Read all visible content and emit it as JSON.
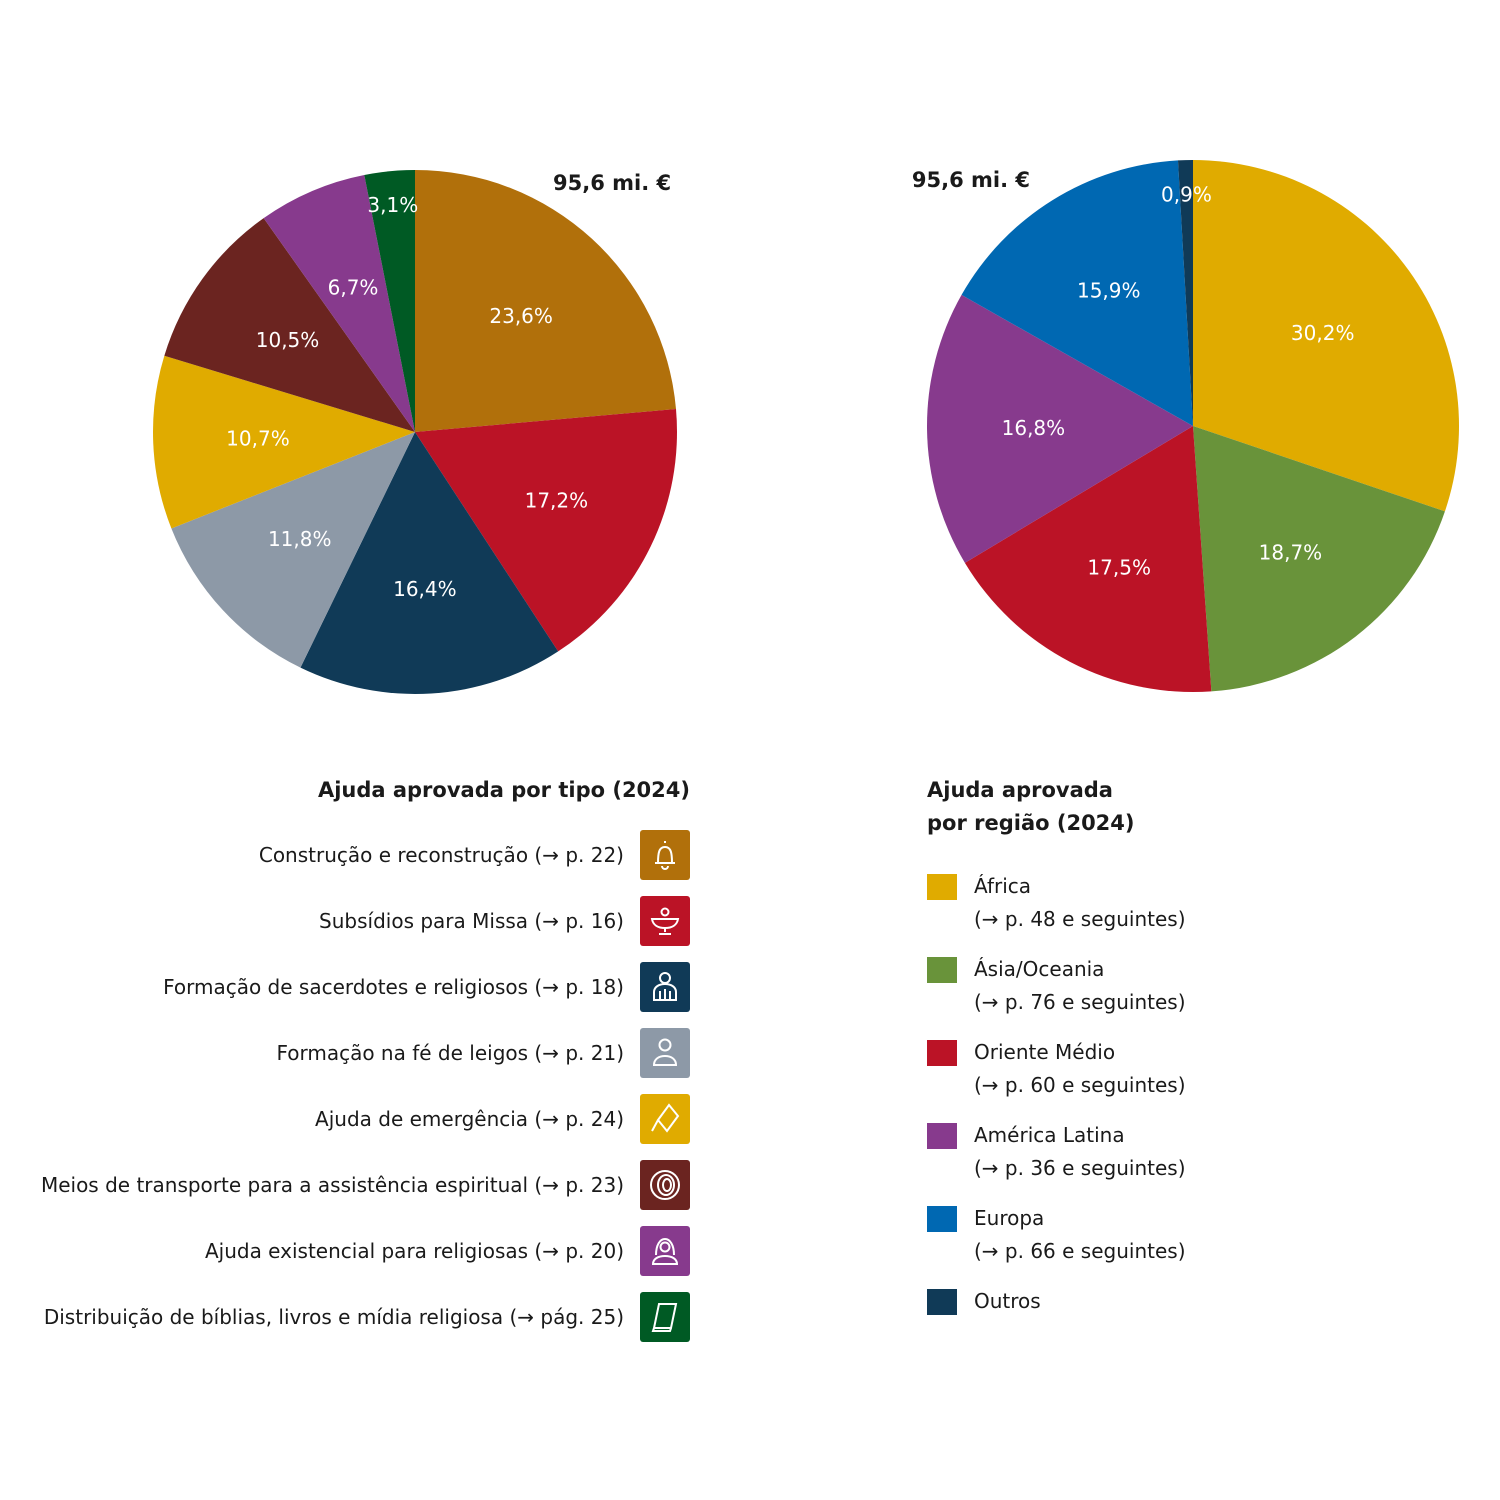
{
  "chart_data": [
    {
      "type": "pie",
      "title": "Ajuda aprovada por tipo (2024)",
      "total_label": "95,6 mi. €",
      "slices": [
        {
          "name": "Construção e reconstrução",
          "value": 23.6,
          "label": "23,6%",
          "color": "#b1700b"
        },
        {
          "name": "Subsídios para Missa",
          "value": 17.2,
          "label": "17,2%",
          "color": "#bb1326"
        },
        {
          "name": "Formação de sacerdotes e religiosos",
          "value": 16.4,
          "label": "16,4%",
          "color": "#103a57"
        },
        {
          "name": "Formação na fé de leigos",
          "value": 11.8,
          "label": "11,8%",
          "color": "#8d99a7"
        },
        {
          "name": "Ajuda de emergência",
          "value": 10.7,
          "label": "10,7%",
          "color": "#e0ab00"
        },
        {
          "name": "Meios de transporte para a assistência espiritual",
          "value": 10.5,
          "label": "10,5%",
          "color": "#6b2420"
        },
        {
          "name": "Ajuda existencial para religiosas",
          "value": 6.7,
          "label": "6,7%",
          "color": "#873a8d"
        },
        {
          "name": "Distribuição de bíblias, livros e mídia religiosa",
          "value": 3.1,
          "label": "3,1%",
          "color": "#005a24"
        }
      ]
    },
    {
      "type": "pie",
      "title": "Ajuda aprovada por região (2024)",
      "total_label": "95,6 mi. €",
      "slices": [
        {
          "name": "África",
          "value": 30.2,
          "label": "30,2%",
          "color": "#e0ab00"
        },
        {
          "name": "Ásia/Oceania",
          "value": 18.7,
          "label": "18,7%",
          "color": "#69933a"
        },
        {
          "name": "Oriente Médio",
          "value": 17.5,
          "label": "17,5%",
          "color": "#bb1326"
        },
        {
          "name": "América Latina",
          "value": 16.8,
          "label": "16,8%",
          "color": "#873a8d"
        },
        {
          "name": "Europa",
          "value": 15.9,
          "label": "15,9%",
          "color": "#0068b2"
        },
        {
          "name": "Outros",
          "value": 0.9,
          "label": "0,9%",
          "color": "#103a57"
        }
      ]
    }
  ],
  "type_legend": {
    "title": "Ajuda aprovada por tipo (2024)",
    "items": [
      {
        "text": "Construção e reconstrução (→ p. 22)",
        "icon": "bell-icon",
        "color": "#b1700b"
      },
      {
        "text": "Subsídios para Missa (→ p. 16)",
        "icon": "chalice-icon",
        "color": "#bb1326"
      },
      {
        "text": "Formação de sacerdotes e religiosos (→ p. 18)",
        "icon": "priest-icon",
        "color": "#103a57"
      },
      {
        "text": "Formação na fé de leigos (→ p. 21)",
        "icon": "person-icon",
        "color": "#8d99a7"
      },
      {
        "text": "Ajuda de emergência (→ p. 24)",
        "icon": "emergency-icon",
        "color": "#e0ab00"
      },
      {
        "text": "Meios de transporte para a assistência espiritual (→ p. 23)",
        "icon": "tire-icon",
        "color": "#6b2420"
      },
      {
        "text": "Ajuda existencial para religiosas (→ p. 20)",
        "icon": "nun-icon",
        "color": "#873a8d"
      },
      {
        "text": "Distribuição de bíblias, livros e mídia religiosa (→ pág. 25)",
        "icon": "book-icon",
        "color": "#005a24"
      }
    ]
  },
  "region_legend": {
    "title_line1": "Ajuda aprovada",
    "title_line2": "por região (2024)",
    "items": [
      {
        "name": "África",
        "ref": "(→ p. 48 e seguintes)",
        "color": "#e0ab00"
      },
      {
        "name": "Ásia/Oceania",
        "ref": "(→ p. 76 e seguintes)",
        "color": "#69933a"
      },
      {
        "name": "Oriente Médio",
        "ref": "(→ p. 60 e seguintes)",
        "color": "#bb1326"
      },
      {
        "name": "América Latina",
        "ref": "(→ p. 36 e seguintes)",
        "color": "#873a8d"
      },
      {
        "name": "Europa",
        "ref": "(→ p. 66 e seguintes)",
        "color": "#0068b2"
      },
      {
        "name": "Outros",
        "ref": "",
        "color": "#103a57"
      }
    ]
  }
}
